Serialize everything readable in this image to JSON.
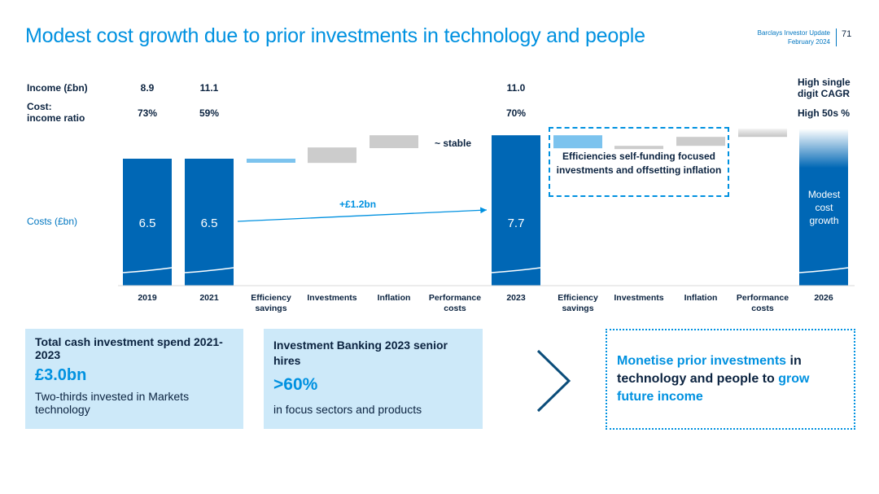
{
  "header": {
    "title": "Modest cost growth due to prior investments in technology and people",
    "publisher": "Barclays Investor Update",
    "date": "February 2024",
    "page_number": "71"
  },
  "rows": {
    "income_label": "Income (£bn)",
    "cost_income_label_1": "Cost:",
    "cost_income_label_2": "income ratio",
    "costs_label": "Costs (£bn)",
    "income": {
      "2019": "8.9",
      "2021": "11.1",
      "2023": "11.0"
    },
    "ratio": {
      "2019": "73%",
      "2021": "59%",
      "2023": "70%"
    },
    "target_income_1": "High single",
    "target_income_2": "digit CAGR",
    "target_ratio": "High 50s %"
  },
  "annotations": {
    "stable": "~ stable",
    "growth_arrow": "+£1.2bn",
    "efficiency_box": "Efficiencies self-funding focused investments and offsetting inflation",
    "modest_growth": "Modest cost growth"
  },
  "chart_data": {
    "type": "bar",
    "subtype": "waterfall",
    "categories": [
      "2019",
      "2021",
      "Efficiency savings",
      "Investments",
      "Inflation",
      "Performance costs",
      "2023",
      "Efficiency savings",
      "Investments",
      "Inflation",
      "Performance costs",
      "2026"
    ],
    "values": [
      6.5,
      6.5,
      null,
      null,
      null,
      null,
      7.7,
      null,
      null,
      null,
      null,
      null
    ],
    "category_labels": [
      [
        "2019"
      ],
      [
        "2021"
      ],
      [
        "Efficiency",
        "savings"
      ],
      [
        "Investments"
      ],
      [
        "Inflation"
      ],
      [
        "Performance",
        "costs"
      ],
      [
        "2023"
      ],
      [
        "Efficiency",
        "savings"
      ],
      [
        "Investments"
      ],
      [
        "Inflation"
      ],
      [
        "Performance",
        "costs"
      ],
      [
        "2026"
      ]
    ],
    "data_labels": [
      "6.5",
      "6.5",
      "",
      "",
      "",
      "",
      "7.7",
      "",
      "",
      "",
      "",
      ""
    ],
    "colors": {
      "total": "#0067b5",
      "efficiency": "#7cc3ee",
      "step": "#cccccc",
      "accent": "#0091e0",
      "text": "#0b2340"
    }
  },
  "cards": {
    "investment": {
      "heading": "Total cash investment spend 2021-2023",
      "value": "£3.0bn",
      "body": "Two-thirds invested in Markets technology"
    },
    "hires": {
      "heading": "Investment Banking 2023 senior hires",
      "value": ">60%",
      "body": "in focus sectors and products"
    }
  },
  "callout": {
    "part1": "Monetise prior investments",
    "part2": " in technology and people to ",
    "part3": "grow future income"
  },
  "icons": {
    "chevron": "chevron-right-icon"
  }
}
